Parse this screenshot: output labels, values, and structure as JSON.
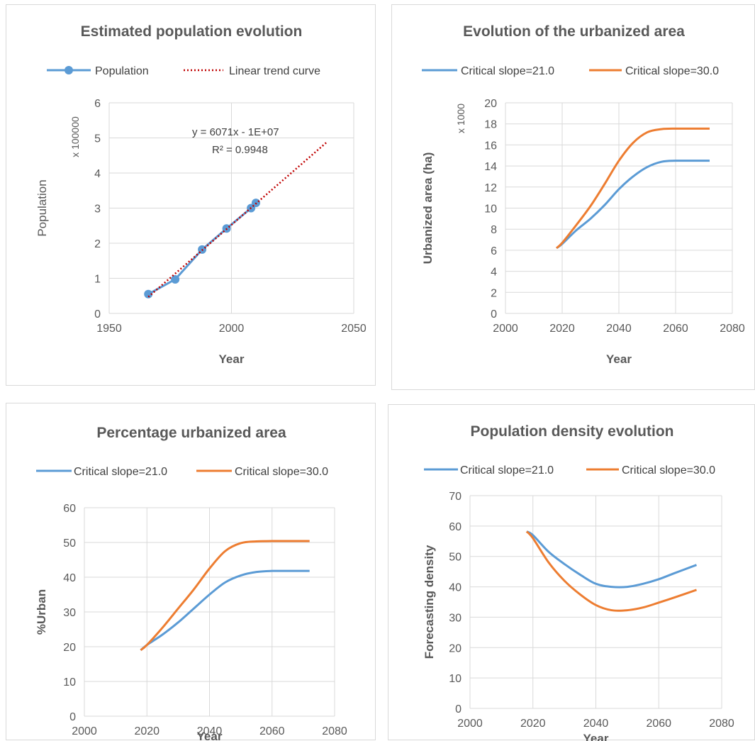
{
  "chart_data": [
    {
      "type": "line",
      "title": "Estimated population evolution",
      "xlabel": "Year",
      "ylabel": "Population",
      "y_multiplier_label": "x 100000",
      "xlim": [
        1950,
        2050
      ],
      "ylim": [
        0,
        6
      ],
      "xticks": [
        1950,
        2000,
        2050
      ],
      "yticks": [
        0,
        1,
        2,
        3,
        4,
        5,
        6
      ],
      "grid": true,
      "legend_position": "top",
      "series": [
        {
          "name": "Population",
          "style": "solid-markers",
          "color": "#5b9bd5",
          "x": [
            1966,
            1977,
            1988,
            1998,
            2008,
            2010
          ],
          "y": [
            0.55,
            0.97,
            1.82,
            2.42,
            3.0,
            3.15
          ]
        },
        {
          "name": "Linear trend curve",
          "style": "dotted",
          "color": "#c00000",
          "x": [
            1966,
            2039
          ],
          "y": [
            0.47,
            4.88
          ]
        }
      ],
      "annotations": [
        "y = 6071x - 1E+07",
        "R² = 0.9948"
      ]
    },
    {
      "type": "line",
      "title": "Evolution of the urbanized area",
      "xlabel": "Year",
      "ylabel": "Urbanized area (ha)",
      "y_multiplier_label": "x 1000",
      "xlim": [
        2000,
        2080
      ],
      "ylim": [
        0,
        20
      ],
      "xticks": [
        2000,
        2020,
        2040,
        2060,
        2080
      ],
      "yticks": [
        0,
        2,
        4,
        6,
        8,
        10,
        12,
        14,
        16,
        18,
        20
      ],
      "grid": true,
      "legend_position": "top",
      "series": [
        {
          "name": "Critical slope=21.0",
          "color": "#5b9bd5",
          "x": [
            2018,
            2020,
            2025,
            2030,
            2035,
            2040,
            2045,
            2050,
            2055,
            2060,
            2065,
            2072
          ],
          "y": [
            6.2,
            6.6,
            7.9,
            9.0,
            10.3,
            11.8,
            13.0,
            13.9,
            14.4,
            14.5,
            14.5,
            14.5
          ]
        },
        {
          "name": "Critical slope=30.0",
          "color": "#ed7d31",
          "x": [
            2018,
            2020,
            2025,
            2030,
            2035,
            2040,
            2045,
            2050,
            2055,
            2060,
            2065,
            2072
          ],
          "y": [
            6.2,
            6.7,
            8.4,
            10.2,
            12.3,
            14.5,
            16.2,
            17.2,
            17.5,
            17.55,
            17.55,
            17.55
          ]
        }
      ]
    },
    {
      "type": "line",
      "title": "Percentage urbanized area",
      "xlabel": "Year",
      "ylabel": "%Urban",
      "xlim": [
        2000,
        2080
      ],
      "ylim": [
        0,
        60
      ],
      "xticks": [
        2000,
        2020,
        2040,
        2060,
        2080
      ],
      "yticks": [
        0,
        10,
        20,
        30,
        40,
        50,
        60
      ],
      "grid": true,
      "legend_position": "top",
      "series": [
        {
          "name": "Critical slope=21.0",
          "color": "#5b9bd5",
          "x": [
            2018,
            2020,
            2025,
            2030,
            2035,
            2040,
            2045,
            2050,
            2055,
            2060,
            2065,
            2072
          ],
          "y": [
            19,
            20.5,
            23.5,
            27,
            31,
            35,
            38.5,
            40.5,
            41.5,
            41.8,
            41.8,
            41.8
          ]
        },
        {
          "name": "Critical slope=30.0",
          "color": "#ed7d31",
          "x": [
            2018,
            2020,
            2025,
            2030,
            2035,
            2040,
            2045,
            2050,
            2055,
            2060,
            2065,
            2072
          ],
          "y": [
            19,
            20.5,
            25.5,
            31,
            36.5,
            42.5,
            47.5,
            49.8,
            50.3,
            50.4,
            50.4,
            50.4
          ]
        }
      ]
    },
    {
      "type": "line",
      "title": "Population density evolution",
      "xlabel": "Year",
      "ylabel": "Forecasting density",
      "xlim": [
        2000,
        2080
      ],
      "ylim": [
        0,
        70
      ],
      "xticks": [
        2000,
        2020,
        2040,
        2060,
        2080
      ],
      "yticks": [
        0,
        10,
        20,
        30,
        40,
        50,
        60,
        70
      ],
      "grid": true,
      "legend_position": "top",
      "series": [
        {
          "name": "Critical slope=21.0",
          "color": "#5b9bd5",
          "x": [
            2018,
            2020,
            2025,
            2030,
            2035,
            2040,
            2045,
            2050,
            2055,
            2060,
            2065,
            2072
          ],
          "y": [
            58.2,
            57,
            51.5,
            47.5,
            44,
            41,
            40,
            40,
            41,
            42.5,
            44.5,
            47.2
          ]
        },
        {
          "name": "Critical slope=30.0",
          "color": "#ed7d31",
          "x": [
            2018,
            2020,
            2025,
            2030,
            2035,
            2040,
            2045,
            2050,
            2055,
            2060,
            2065,
            2072
          ],
          "y": [
            58.2,
            56,
            48,
            42,
            37.5,
            34,
            32.3,
            32.3,
            33.2,
            34.8,
            36.5,
            39
          ]
        }
      ]
    }
  ]
}
